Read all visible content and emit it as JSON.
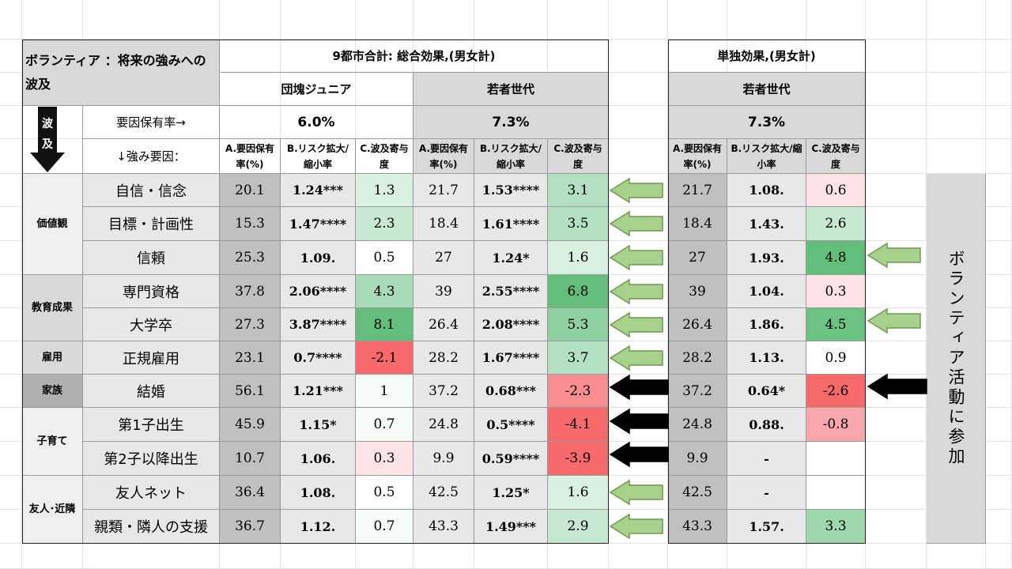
{
  "title": "ボランティア ：将来の強みへの波及",
  "group_header_left": "9都市合計: 総合効果,(男女計)",
  "group_header_right": "単独効果,(男女計)",
  "cohort_1": "団塊ジュニア",
  "cohort_2": "若者世代",
  "cohort_3": "若者世代",
  "hato_char1": "波",
  "hato_char2": "及",
  "factor_rate_label": "要因保有率→",
  "strength_factor_label": "↓強み要因：",
  "rate_1": "6.0%",
  "rate_2": "7.3%",
  "rate_3": "7.3%",
  "col_a": "A.要因保有率(%)",
  "col_b": "B.リスク拡大/縮小率",
  "col_b_right": "B.リスク拡大/縮小率",
  "col_c": "C.波及寄与度",
  "side_label": "ボランティア活動に参加",
  "groups": [
    "価値観",
    "教育成果",
    "雇用",
    "家族",
    "子育て",
    "友人･近隣"
  ],
  "colors": {
    "header_gray": "#d9d9d9",
    "row_gray": "#e8e8e8",
    "a_gray": "#c0c0c0",
    "positive_light": "#daf0e0",
    "positive_mid": "#b3e0c0",
    "positive_strong": "#63be7b",
    "negative_light": "#fce4e6",
    "negative_mid": "#f7a6ab",
    "negative_strong": "#f8696b",
    "arrow_green": "#a9d18e",
    "arrow_black": "#000000"
  },
  "rows": [
    {
      "label": "自信・信念",
      "jA": "20.1",
      "jB": "1.24***",
      "jC": "1.3",
      "wA": "21.7",
      "wB": "1.53****",
      "wC": "3.1",
      "sA": "21.7",
      "sB": "1.08.",
      "sC": "0.6"
    },
    {
      "label": "目標・計画性",
      "jA": "15.3",
      "jB": "1.47****",
      "jC": "2.3",
      "wA": "18.4",
      "wB": "1.61****",
      "wC": "3.5",
      "sA": "18.4",
      "sB": "1.43.",
      "sC": "2.6"
    },
    {
      "label": "信頼",
      "jA": "25.3",
      "jB": "1.09.",
      "jC": "0.5",
      "wA": "27",
      "wB": "1.24*",
      "wC": "1.6",
      "sA": "27",
      "sB": "1.93.",
      "sC": "4.8"
    },
    {
      "label": "専門資格",
      "jA": "37.8",
      "jB": "2.06****",
      "jC": "4.3",
      "wA": "39",
      "wB": "2.55****",
      "wC": "6.8",
      "sA": "39",
      "sB": "1.04.",
      "sC": "0.3"
    },
    {
      "label": "大学卒",
      "jA": "27.3",
      "jB": "3.87****",
      "jC": "8.1",
      "wA": "26.4",
      "wB": "2.08****",
      "wC": "5.3",
      "sA": "26.4",
      "sB": "1.86.",
      "sC": "4.5"
    },
    {
      "label": "正規雇用",
      "jA": "23.1",
      "jB": "0.7****",
      "jC": "-2.1",
      "wA": "28.2",
      "wB": "1.67****",
      "wC": "3.7",
      "sA": "28.2",
      "sB": "1.13.",
      "sC": "0.9"
    },
    {
      "label": "結婚",
      "jA": "56.1",
      "jB": "1.21***",
      "jC": "1",
      "wA": "37.2",
      "wB": "0.68***",
      "wC": "-2.3",
      "sA": "37.2",
      "sB": "0.64*",
      "sC": "-2.6"
    },
    {
      "label": "第1子出生",
      "jA": "45.9",
      "jB": "1.15*",
      "jC": "0.7",
      "wA": "24.8",
      "wB": "0.5****",
      "wC": "-4.1",
      "sA": "24.8",
      "sB": "0.88.",
      "sC": "-0.8"
    },
    {
      "label": "第2子以降出生",
      "jA": "10.7",
      "jB": "1.06.",
      "jC": "0.3",
      "wA": "9.9",
      "wB": "0.59****",
      "wC": "-3.9",
      "sA": "9.9",
      "sB": "-",
      "sC": ""
    },
    {
      "label": "友人ネット",
      "jA": "36.4",
      "jB": "1.08.",
      "jC": "0.5",
      "wA": "42.5",
      "wB": "1.25*",
      "wC": "1.6",
      "sA": "42.5",
      "sB": "-",
      "sC": ""
    },
    {
      "label": "親類・隣人の支援",
      "jA": "36.7",
      "jB": "1.12.",
      "jC": "0.7",
      "wA": "43.3",
      "wB": "1.49***",
      "wC": "2.9",
      "sA": "43.3",
      "sB": "1.57.",
      "sC": "3.3"
    }
  ]
}
